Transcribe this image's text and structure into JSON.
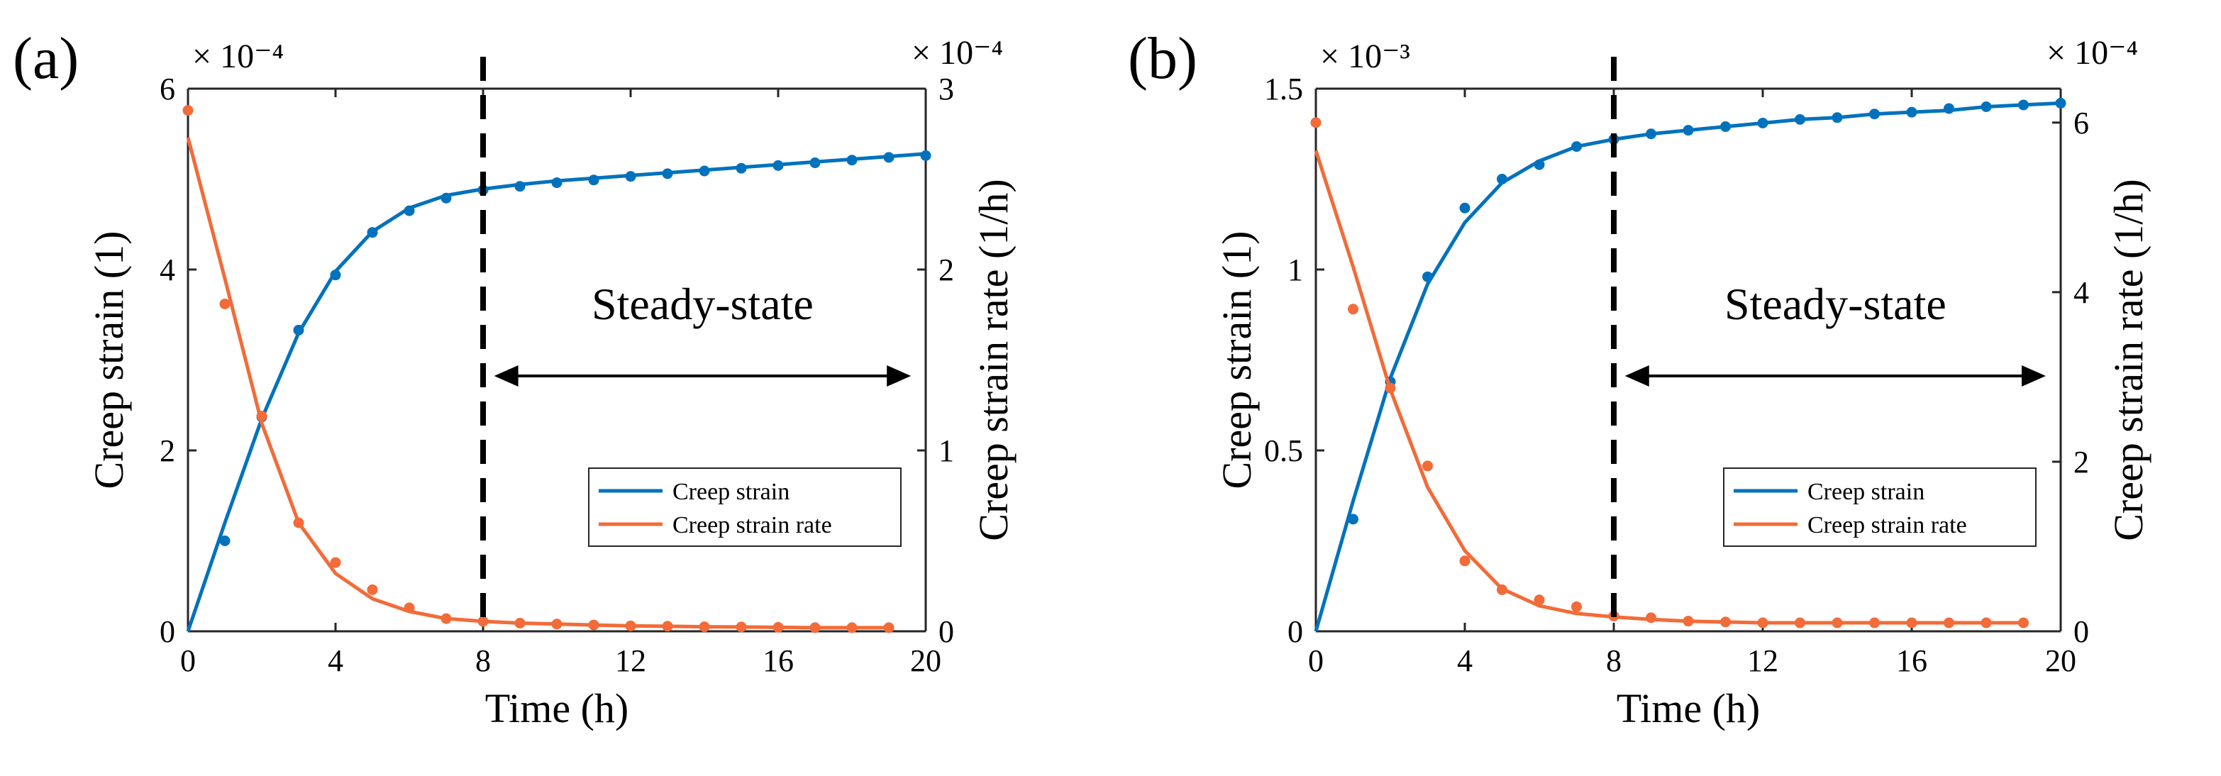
{
  "colors": {
    "strain": "#0072BD",
    "rate": "#F26B38",
    "axis": "#262626",
    "divider": "#000000"
  },
  "chart_data": [
    {
      "type": "line",
      "panel_label": "(a)",
      "title": "",
      "xlabel": "Time (h)",
      "ylabel_left": "Creep strain (1)",
      "ylabel_right": "Creep strain rate (1/h)",
      "xlim": [
        0,
        20
      ],
      "ylim_left": [
        0,
        6
      ],
      "ylim_right": [
        0,
        3
      ],
      "xticks": [
        "0",
        "4",
        "8",
        "12",
        "16",
        "20"
      ],
      "yticks_left": [
        "0",
        "2",
        "4",
        "6"
      ],
      "yticks_right": [
        "0",
        "1",
        "2",
        "3"
      ],
      "exponent_left": "× 10⁻⁴",
      "exponent_right": "× 10⁻⁴",
      "divider_x": 8,
      "annotation": "Steady-state",
      "arrow_range": [
        8.3,
        19.6
      ],
      "legend_location": "lower-right",
      "series": [
        {
          "name": "Creep strain",
          "axis": "left",
          "fit_x": [
            0,
            1,
            2,
            3,
            4,
            5,
            6,
            7,
            8,
            9,
            10,
            11,
            12,
            13,
            14,
            15,
            16,
            17,
            18,
            19,
            20
          ],
          "fit_y": [
            0,
            1.2,
            2.35,
            3.3,
            3.98,
            4.42,
            4.68,
            4.82,
            4.89,
            4.94,
            4.98,
            5.01,
            5.04,
            5.07,
            5.1,
            5.13,
            5.16,
            5.19,
            5.22,
            5.25,
            5.28
          ],
          "points_x": [
            1,
            2,
            3,
            4,
            5,
            6,
            7,
            8,
            9,
            10,
            11,
            12,
            13,
            14,
            15,
            16,
            17,
            18,
            19,
            20
          ],
          "points_y": [
            1.0,
            2.37,
            3.33,
            3.94,
            4.41,
            4.65,
            4.79,
            4.88,
            4.92,
            4.96,
            4.99,
            5.03,
            5.06,
            5.09,
            5.12,
            5.15,
            5.18,
            5.21,
            5.24,
            5.26
          ]
        },
        {
          "name": "Creep strain rate",
          "axis": "right",
          "fit_x": [
            0,
            1,
            2,
            3,
            4,
            5,
            6,
            7,
            8,
            9,
            10,
            11,
            12,
            13,
            14,
            15,
            16,
            17,
            18,
            19
          ],
          "fit_y": [
            2.73,
            1.95,
            1.15,
            0.6,
            0.32,
            0.18,
            0.11,
            0.07,
            0.055,
            0.045,
            0.04,
            0.035,
            0.03,
            0.028,
            0.025,
            0.024,
            0.022,
            0.02,
            0.02,
            0.02
          ],
          "points_x": [
            0,
            1,
            2,
            3,
            4,
            5,
            6,
            7,
            8,
            9,
            10,
            11,
            12,
            13,
            14,
            15,
            16,
            17,
            18,
            19
          ],
          "points_y": [
            2.88,
            1.81,
            1.19,
            0.6,
            0.38,
            0.23,
            0.13,
            0.07,
            0.055,
            0.045,
            0.04,
            0.035,
            0.03,
            0.028,
            0.025,
            0.024,
            0.022,
            0.02,
            0.02,
            0.02
          ]
        }
      ]
    },
    {
      "type": "line",
      "panel_label": "(b)",
      "title": "",
      "xlabel": "Time (h)",
      "ylabel_left": "Creep strain (1)",
      "ylabel_right": "Creep strain rate (1/h)",
      "xlim": [
        0,
        20
      ],
      "ylim_left": [
        0,
        1.5
      ],
      "ylim_right": [
        0,
        6.4
      ],
      "xticks": [
        "0",
        "4",
        "8",
        "12",
        "16",
        "20"
      ],
      "yticks_left": [
        "0",
        "0.5",
        "1",
        "1.5"
      ],
      "yticks_right": [
        "0",
        "2",
        "4",
        "6"
      ],
      "exponent_left": "× 10⁻³",
      "exponent_right": "× 10⁻⁴",
      "divider_x": 8,
      "annotation": "Steady-state",
      "arrow_range": [
        8.3,
        19.6
      ],
      "legend_location": "lower-right",
      "series": [
        {
          "name": "Creep strain",
          "axis": "left",
          "fit_x": [
            0,
            1,
            2,
            3,
            4,
            5,
            6,
            7,
            8,
            9,
            10,
            11,
            12,
            13,
            14,
            15,
            16,
            17,
            18,
            19,
            20
          ],
          "fit_y": [
            0,
            0.36,
            0.7,
            0.96,
            1.13,
            1.24,
            1.3,
            1.34,
            1.36,
            1.375,
            1.385,
            1.395,
            1.405,
            1.415,
            1.42,
            1.43,
            1.435,
            1.44,
            1.45,
            1.455,
            1.46
          ],
          "points_x": [
            1,
            2,
            3,
            4,
            5,
            6,
            7,
            8,
            9,
            10,
            11,
            12,
            13,
            14,
            15,
            16,
            17,
            18,
            19,
            20
          ],
          "points_y": [
            0.31,
            0.69,
            0.98,
            1.17,
            1.25,
            1.29,
            1.34,
            1.36,
            1.375,
            1.385,
            1.395,
            1.405,
            1.415,
            1.42,
            1.43,
            1.435,
            1.445,
            1.45,
            1.455,
            1.46
          ]
        },
        {
          "name": "Creep strain rate",
          "axis": "right",
          "fit_x": [
            0,
            1,
            2,
            3,
            4,
            5,
            6,
            7,
            8,
            9,
            10,
            11,
            12,
            13,
            14,
            15,
            16,
            17,
            18,
            19
          ],
          "fit_y": [
            5.67,
            4.3,
            2.85,
            1.7,
            0.95,
            0.5,
            0.3,
            0.21,
            0.17,
            0.14,
            0.12,
            0.11,
            0.1,
            0.1,
            0.1,
            0.1,
            0.1,
            0.1,
            0.1,
            0.1
          ],
          "points_x": [
            0,
            1,
            2,
            3,
            4,
            5,
            6,
            7,
            8,
            9,
            10,
            11,
            12,
            13,
            14,
            15,
            16,
            17,
            18,
            19
          ],
          "points_y": [
            6.0,
            3.8,
            2.87,
            1.95,
            0.83,
            0.49,
            0.37,
            0.29,
            0.18,
            0.16,
            0.12,
            0.11,
            0.1,
            0.1,
            0.1,
            0.1,
            0.1,
            0.1,
            0.1,
            0.1
          ]
        }
      ]
    }
  ]
}
